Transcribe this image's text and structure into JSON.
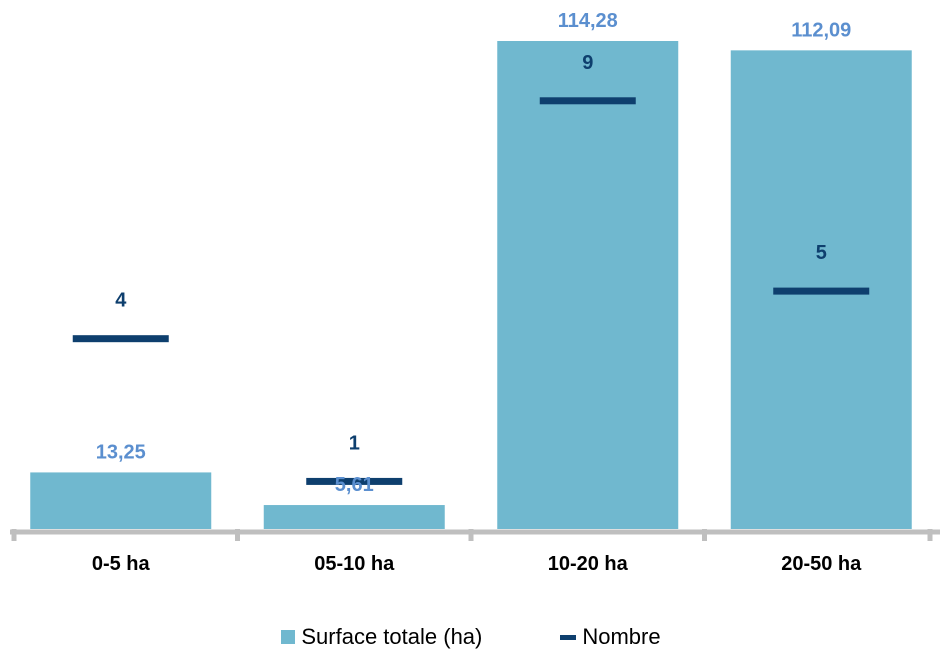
{
  "chart_data": {
    "type": "bar",
    "categories": [
      "0-5 ha",
      "05-10 ha",
      "10-20 ha",
      "20-50 ha"
    ],
    "series": [
      {
        "name": "Surface totale (ha)",
        "kind": "bar",
        "values": [
          13.25,
          5.61,
          114.28,
          112.09
        ],
        "labels": [
          "13,25",
          "5,61",
          "114,28",
          "112,09"
        ]
      },
      {
        "name": "Nombre",
        "kind": "marker",
        "values": [
          4,
          1,
          9,
          5
        ],
        "labels": [
          "4",
          "1",
          "9",
          "5"
        ]
      }
    ],
    "ylim": [
      0,
      114.28
    ],
    "y2lim": [
      0,
      9.5
    ],
    "grid": false,
    "legend_position": "bottom",
    "colors": {
      "bar": "#70b8cf",
      "bar_label": "#5b8fcf",
      "marker": "#0e3f6e",
      "axis": "#bfbfbf"
    }
  },
  "legend": {
    "bar_label": "Surface totale (ha)",
    "line_label": "Nombre"
  }
}
